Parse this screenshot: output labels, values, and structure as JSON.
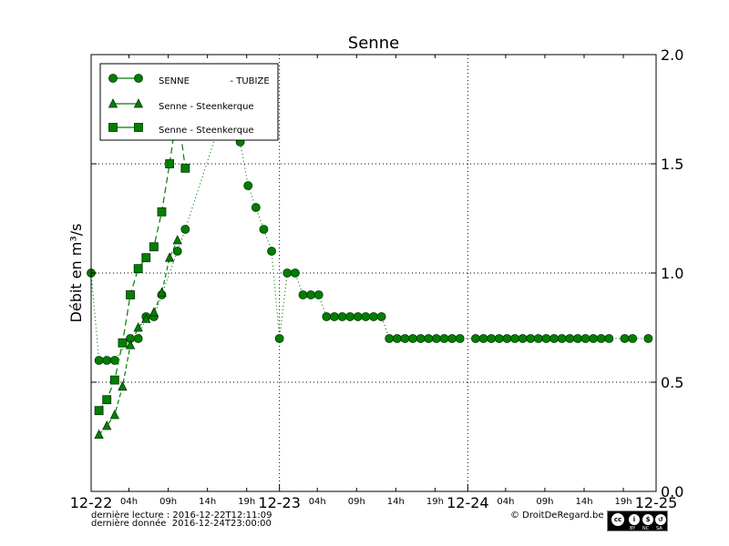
{
  "chart_data": {
    "type": "line",
    "title": "Senne",
    "ylabel": "Débit en m³/s",
    "xlabel": "",
    "xlim": [
      "2016-12-22T00:00",
      "2016-12-25T00:00"
    ],
    "ylim": [
      0,
      2.0
    ],
    "yticks": [
      "0.0",
      "0.5",
      "1.0",
      "1.5",
      "2.0"
    ],
    "xticks_major": [
      "12-22",
      "12-23",
      "12-24",
      "12-25"
    ],
    "xticks_minor": [
      "04h",
      "09h",
      "14h",
      "19h"
    ],
    "grid": true,
    "legend_position": "top-left",
    "color": "#008000",
    "series": [
      {
        "name": "SENNE              - TUBIZE",
        "marker": "circle",
        "linestyle": "dotted",
        "points": [
          [
            "2016-12-22T00:00",
            1.0
          ],
          [
            "2016-12-22T01:00",
            0.6
          ],
          [
            "2016-12-22T02:00",
            0.6
          ],
          [
            "2016-12-22T03:00",
            0.6
          ],
          [
            "2016-12-22T05:00",
            0.7
          ],
          [
            "2016-12-22T06:00",
            0.7
          ],
          [
            "2016-12-22T07:00",
            0.8
          ],
          [
            "2016-12-22T08:00",
            0.8
          ],
          [
            "2016-12-22T09:00",
            0.9
          ],
          [
            "2016-12-22T11:00",
            1.1
          ],
          [
            "2016-12-22T12:00",
            1.2
          ],
          [
            "2016-12-22T17:00",
            1.75
          ],
          [
            "2016-12-22T18:00",
            1.7
          ],
          [
            "2016-12-22T19:00",
            1.6
          ],
          [
            "2016-12-22T20:00",
            1.4
          ],
          [
            "2016-12-22T21:00",
            1.3
          ],
          [
            "2016-12-22T22:00",
            1.2
          ],
          [
            "2016-12-22T23:00",
            1.1
          ],
          [
            "2016-12-23T00:00",
            0.7
          ],
          [
            "2016-12-23T01:00",
            1.0
          ],
          [
            "2016-12-23T02:00",
            1.0
          ],
          [
            "2016-12-23T03:00",
            0.9
          ],
          [
            "2016-12-23T04:00",
            0.9
          ],
          [
            "2016-12-23T05:00",
            0.9
          ],
          [
            "2016-12-23T06:00",
            0.8
          ],
          [
            "2016-12-23T07:00",
            0.8
          ],
          [
            "2016-12-23T08:00",
            0.8
          ],
          [
            "2016-12-23T09:00",
            0.8
          ],
          [
            "2016-12-23T10:00",
            0.8
          ],
          [
            "2016-12-23T11:00",
            0.8
          ],
          [
            "2016-12-23T12:00",
            0.8
          ],
          [
            "2016-12-23T13:00",
            0.8
          ],
          [
            "2016-12-23T14:00",
            0.7
          ],
          [
            "2016-12-23T15:00",
            0.7
          ],
          [
            "2016-12-23T16:00",
            0.7
          ],
          [
            "2016-12-23T17:00",
            0.7
          ],
          [
            "2016-12-23T18:00",
            0.7
          ],
          [
            "2016-12-23T19:00",
            0.7
          ],
          [
            "2016-12-23T20:00",
            0.7
          ],
          [
            "2016-12-23T21:00",
            0.7
          ],
          [
            "2016-12-23T22:00",
            0.7
          ],
          [
            "2016-12-23T23:00",
            0.7
          ],
          [
            "2016-12-24T01:00",
            0.7
          ],
          [
            "2016-12-24T02:00",
            0.7
          ],
          [
            "2016-12-24T03:00",
            0.7
          ],
          [
            "2016-12-24T04:00",
            0.7
          ],
          [
            "2016-12-24T05:00",
            0.7
          ],
          [
            "2016-12-24T06:00",
            0.7
          ],
          [
            "2016-12-24T07:00",
            0.7
          ],
          [
            "2016-12-24T08:00",
            0.7
          ],
          [
            "2016-12-24T09:00",
            0.7
          ],
          [
            "2016-12-24T10:00",
            0.7
          ],
          [
            "2016-12-24T11:00",
            0.7
          ],
          [
            "2016-12-24T12:00",
            0.7
          ],
          [
            "2016-12-24T13:00",
            0.7
          ],
          [
            "2016-12-24T14:00",
            0.7
          ],
          [
            "2016-12-24T15:00",
            0.7
          ],
          [
            "2016-12-24T16:00",
            0.7
          ],
          [
            "2016-12-24T17:00",
            0.7
          ],
          [
            "2016-12-24T18:00",
            0.7
          ],
          [
            "2016-12-24T20:00",
            0.7
          ],
          [
            "2016-12-24T21:00",
            0.7
          ],
          [
            "2016-12-24T23:00",
            0.7
          ]
        ]
      },
      {
        "name": "Senne - Steenkerque",
        "marker": "triangle",
        "linestyle": "dashed",
        "points": [
          [
            "2016-12-22T01:00",
            0.26
          ],
          [
            "2016-12-22T02:00",
            0.3
          ],
          [
            "2016-12-22T03:00",
            0.35
          ],
          [
            "2016-12-22T04:00",
            0.48
          ],
          [
            "2016-12-22T05:00",
            0.67
          ],
          [
            "2016-12-22T06:00",
            0.75
          ],
          [
            "2016-12-22T07:00",
            0.79
          ],
          [
            "2016-12-22T08:00",
            0.82
          ],
          [
            "2016-12-22T09:00",
            0.91
          ],
          [
            "2016-12-22T10:00",
            1.07
          ],
          [
            "2016-12-22T11:00",
            1.15
          ]
        ]
      },
      {
        "name": "Senne - Steenkerque",
        "marker": "square",
        "linestyle": "longdash",
        "points": [
          [
            "2016-12-22T01:00",
            0.37
          ],
          [
            "2016-12-22T02:00",
            0.42
          ],
          [
            "2016-12-22T03:00",
            0.51
          ],
          [
            "2016-12-22T04:00",
            0.68
          ],
          [
            "2016-12-22T05:00",
            0.9
          ],
          [
            "2016-12-22T06:00",
            1.02
          ],
          [
            "2016-12-22T07:00",
            1.07
          ],
          [
            "2016-12-22T08:00",
            1.12
          ],
          [
            "2016-12-22T09:00",
            1.28
          ],
          [
            "2016-12-22T10:00",
            1.5
          ],
          [
            "2016-12-22T11:00",
            1.75
          ],
          [
            "2016-12-22T12:00",
            1.48
          ]
        ]
      }
    ]
  },
  "footer": {
    "last_read": "dernière lecture : 2016-12-22T12:11:09",
    "last_data": "dernière donnée  2016-12-24T23:00:00",
    "copyright": "© DroitDeRegard.be",
    "license_badge": "cc BY NC SA"
  }
}
